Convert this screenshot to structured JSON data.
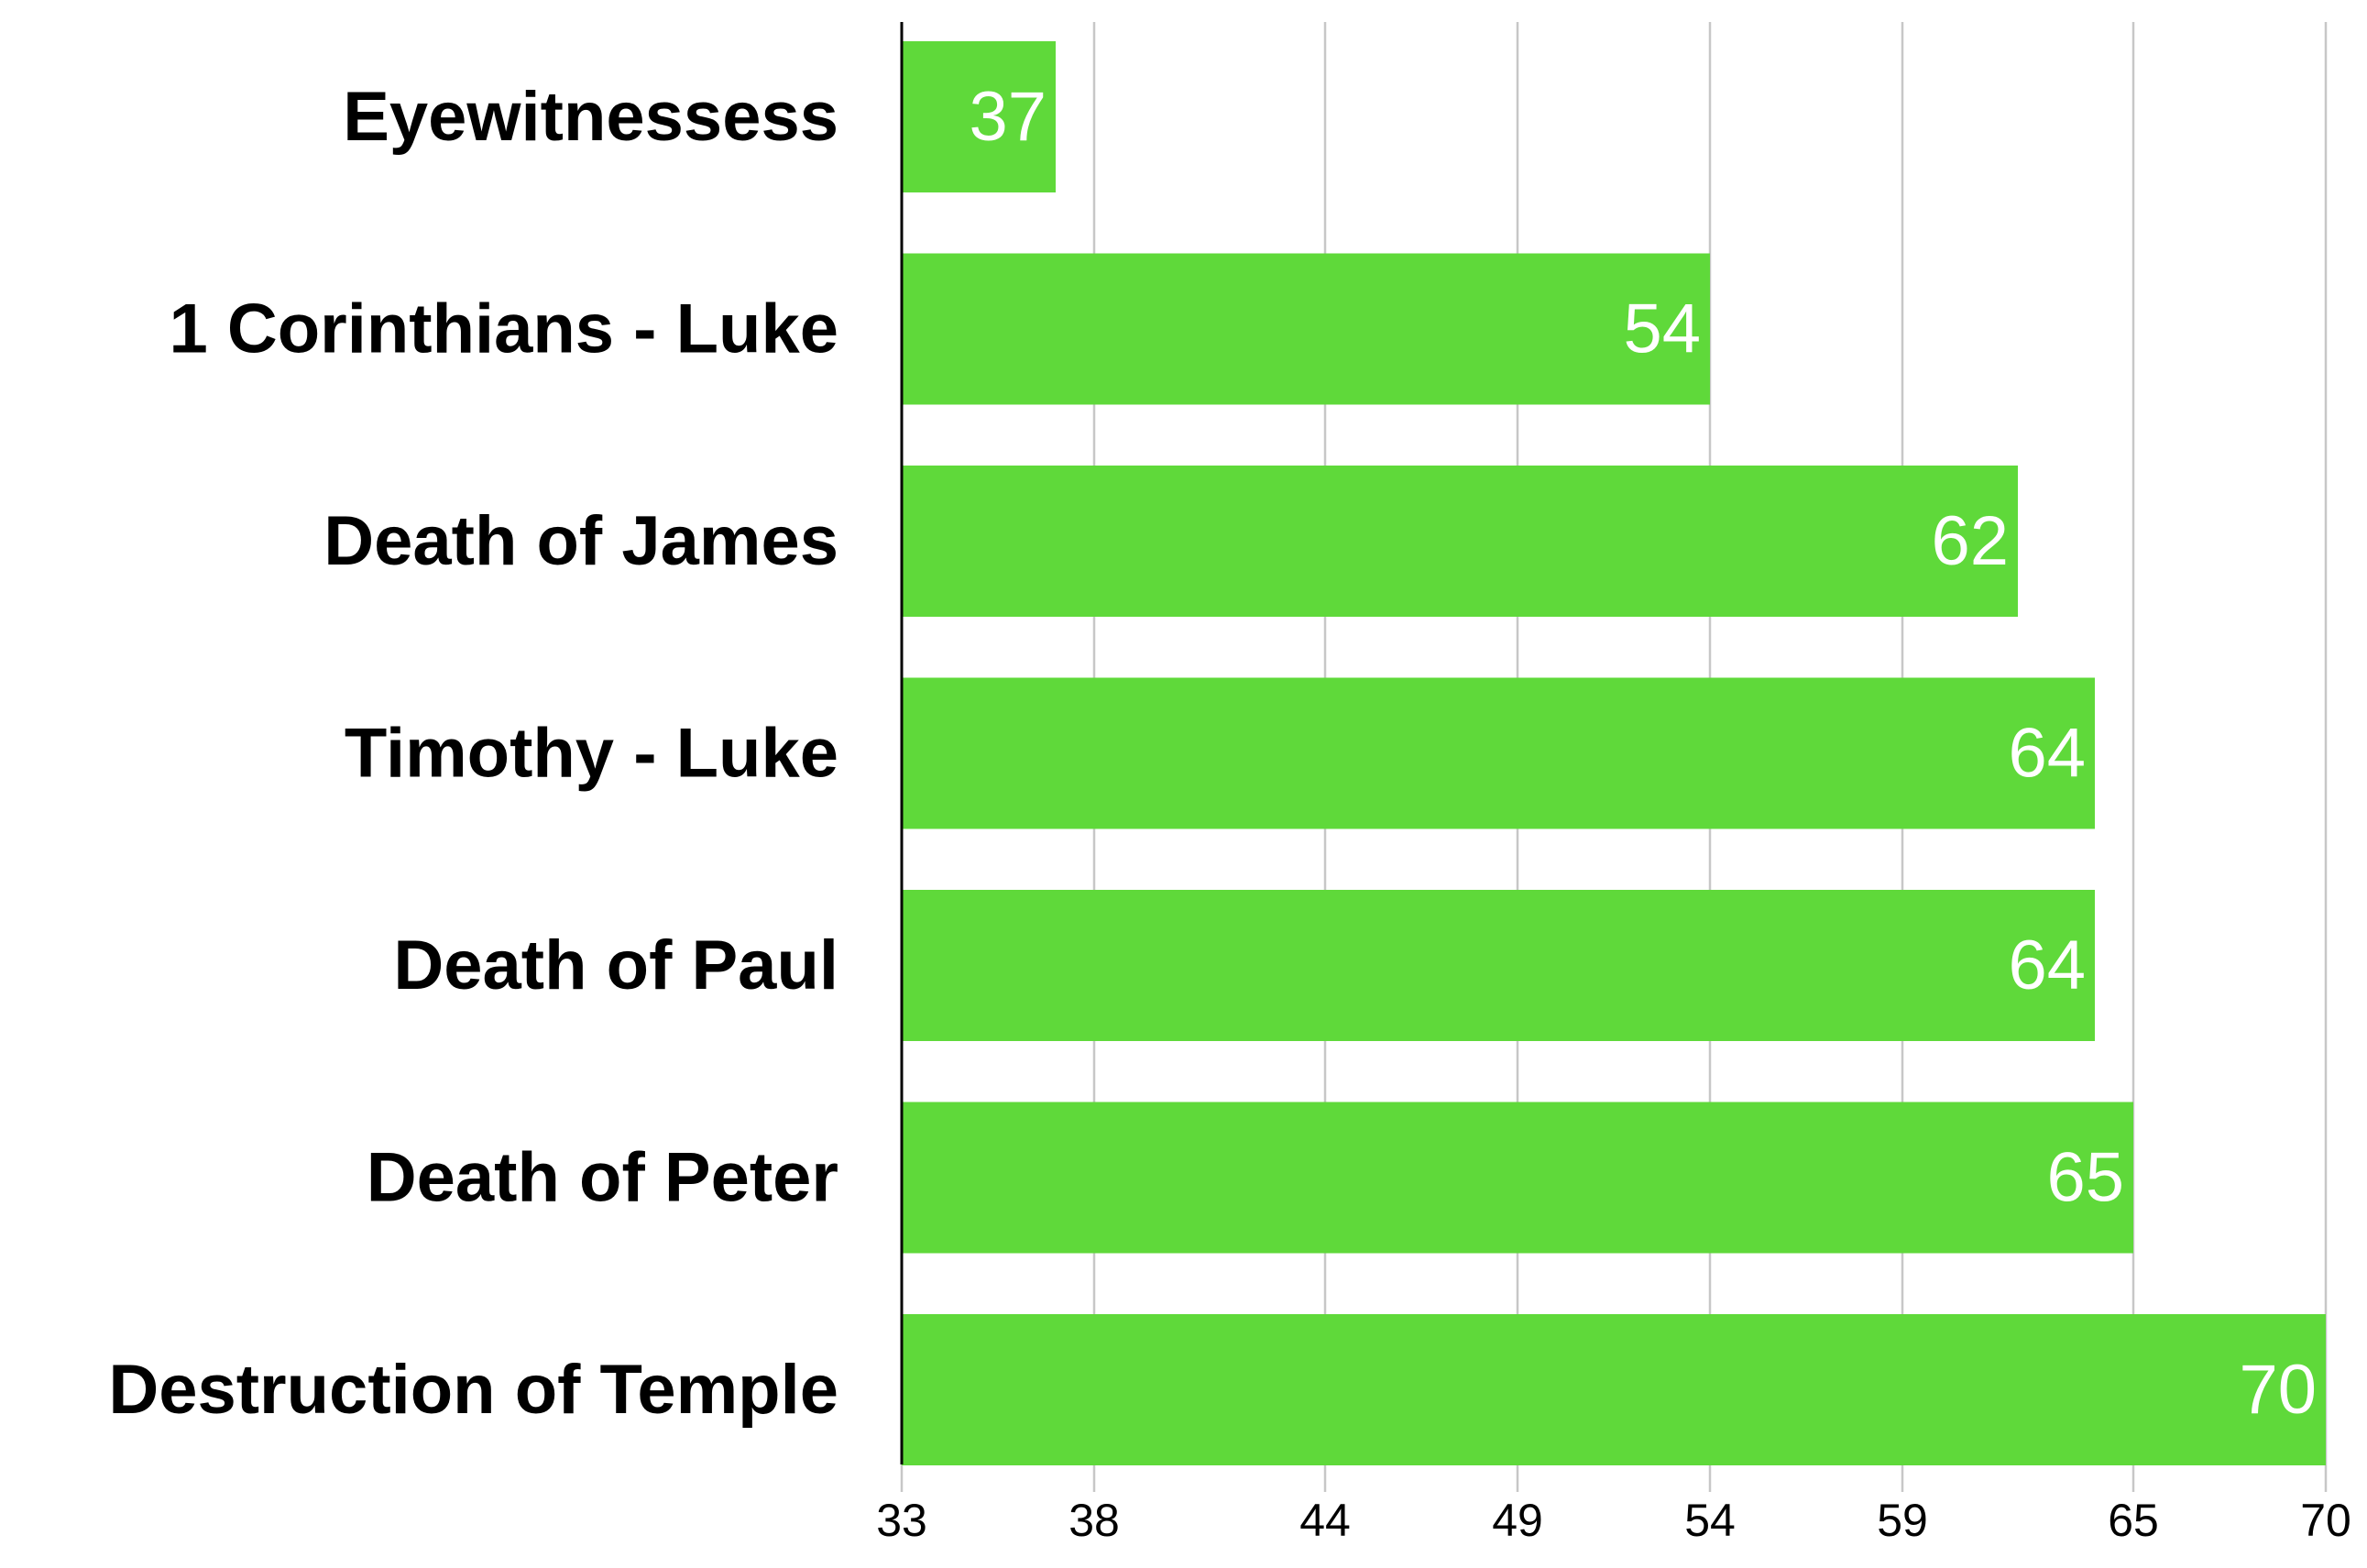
{
  "chart_data": {
    "type": "bar",
    "orientation": "horizontal",
    "title": "",
    "xlabel": "",
    "ylabel": "",
    "categories": [
      "Eyewitnessess",
      "1 Corinthians - Luke",
      "Death of James",
      "Timothy - Luke",
      "Death of Paul",
      "Death of Peter",
      "Destruction of Temple"
    ],
    "values": [
      37,
      54,
      62,
      64,
      64,
      65,
      70
    ],
    "data_labels": [
      "37",
      "54",
      "62",
      "64",
      "64",
      "65",
      "70"
    ],
    "xlim": [
      33,
      70
    ],
    "x_ticks": [
      33,
      38,
      44,
      49,
      54,
      59,
      65,
      70
    ],
    "x_tick_labels": [
      "33",
      "38",
      "44",
      "49",
      "54",
      "59",
      "65",
      "70"
    ],
    "grid": "vertical",
    "legend": "none",
    "bar_color": "#5fd93a",
    "grid_color": "#c7c7c7",
    "axis_color": "#000000",
    "label_color": "#000000",
    "value_label_color": "#ffffff"
  }
}
